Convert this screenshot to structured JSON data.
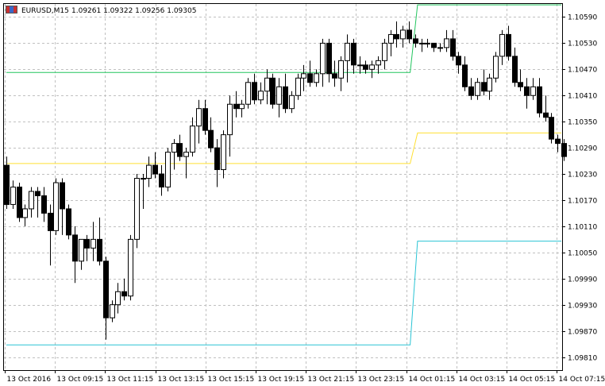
{
  "header": {
    "symbol_label": "EURUSD,M15",
    "ohlc_label": "1.09261 1.09322 1.09256 1.09305",
    "icon": "chart-window-icon"
  },
  "colors": {
    "background": "#ffffff",
    "grid": "#c0c0c0",
    "candle": "#000000",
    "line_upper": "#22c55e",
    "line_middle": "#ffe033",
    "line_lower": "#2ac4d4"
  },
  "chart_data": {
    "type": "candlestick",
    "symbol": "EURUSD",
    "timeframe": "M15",
    "grid": true,
    "ylim": [
      1.0978,
      1.1062
    ],
    "y_ticks": [
      "1.10590",
      "1.10530",
      "1.10470",
      "1.10410",
      "1.10350",
      "1.10290",
      "1.10230",
      "1.10170",
      "1.10110",
      "1.10050",
      "1.09990",
      "1.09930",
      "1.09870",
      "1.09810"
    ],
    "x_ticks": [
      "13 Oct 2016",
      "13 Oct 09:15",
      "13 Oct 11:15",
      "13 Oct 13:15",
      "13 Oct 15:15",
      "13 Oct 19:15",
      "13 Oct 21:15",
      "13 Oct 23:15",
      "14 Oct 01:15",
      "14 Oct 03:15",
      "14 Oct 05:15",
      "14 Oct 07:15"
    ],
    "candles": [
      [
        1.1025,
        1.1027,
        1.1015,
        1.1016
      ],
      [
        1.1016,
        1.10215,
        1.1015,
        1.102
      ],
      [
        1.102,
        1.1021,
        1.1012,
        1.1013
      ],
      [
        1.1013,
        1.1016,
        1.1011,
        1.1015
      ],
      [
        1.1015,
        1.102,
        1.1013,
        1.1019
      ],
      [
        1.1019,
        1.102,
        1.1013,
        1.1018
      ],
      [
        1.1018,
        1.102,
        1.1012,
        1.1014
      ],
      [
        1.1014,
        1.1016,
        1.1002,
        1.101
      ],
      [
        1.101,
        1.1022,
        1.1009,
        1.1021
      ],
      [
        1.1021,
        1.1022,
        1.1009,
        1.1015
      ],
      [
        1.1015,
        1.1016,
        1.1008,
        1.1009
      ],
      [
        1.1009,
        1.1011,
        1.0998,
        1.1003
      ],
      [
        1.1003,
        1.1008,
        1.1001,
        1.1008
      ],
      [
        1.1008,
        1.1009,
        1.1003,
        1.1006
      ],
      [
        1.1006,
        1.1012,
        1.1003,
        1.1008
      ],
      [
        1.1008,
        1.1013,
        1.1002,
        1.1003
      ],
      [
        1.1003,
        1.1004,
        1.0985,
        1.099
      ],
      [
        1.099,
        1.0994,
        1.0989,
        1.0993
      ],
      [
        1.0993,
        1.0998,
        1.0991,
        1.0996
      ],
      [
        1.0996,
        1.0999,
        1.0994,
        1.0995
      ],
      [
        1.0995,
        1.1009,
        1.0994,
        1.1008
      ],
      [
        1.1008,
        1.1023,
        1.1006,
        1.1022
      ],
      [
        1.1022,
        1.1023,
        1.1015,
        1.1022
      ],
      [
        1.1022,
        1.1027,
        1.102,
        1.1025
      ],
      [
        1.1025,
        1.1028,
        1.1022,
        1.1023
      ],
      [
        1.1023,
        1.1025,
        1.1018,
        1.102
      ],
      [
        1.102,
        1.1029,
        1.1019,
        1.1028
      ],
      [
        1.1028,
        1.1031,
        1.1024,
        1.103
      ],
      [
        1.103,
        1.1032,
        1.1026,
        1.1027
      ],
      [
        1.1027,
        1.1029,
        1.1022,
        1.1028
      ],
      [
        1.1028,
        1.1036,
        1.1027,
        1.1034
      ],
      [
        1.1034,
        1.104,
        1.103,
        1.1038
      ],
      [
        1.1038,
        1.104,
        1.1032,
        1.1033
      ],
      [
        1.1033,
        1.1036,
        1.1028,
        1.1029
      ],
      [
        1.1029,
        1.1031,
        1.102,
        1.1024
      ],
      [
        1.1024,
        1.1033,
        1.1022,
        1.1032
      ],
      [
        1.1032,
        1.1041,
        1.1027,
        1.1039
      ],
      [
        1.1039,
        1.1042,
        1.1036,
        1.1038
      ],
      [
        1.1038,
        1.104,
        1.1036,
        1.1039
      ],
      [
        1.1039,
        1.1045,
        1.1038,
        1.1044
      ],
      [
        1.1044,
        1.1046,
        1.1039,
        1.104
      ],
      [
        1.104,
        1.1044,
        1.1039,
        1.1042
      ],
      [
        1.1042,
        1.1047,
        1.1039,
        1.1045
      ],
      [
        1.1045,
        1.1046,
        1.1038,
        1.1039
      ],
      [
        1.1039,
        1.1045,
        1.1036,
        1.1043
      ],
      [
        1.1043,
        1.1046,
        1.1037,
        1.1038
      ],
      [
        1.1038,
        1.1042,
        1.1037,
        1.1041
      ],
      [
        1.1041,
        1.1046,
        1.104,
        1.1045
      ],
      [
        1.1045,
        1.1048,
        1.1042,
        1.1046
      ],
      [
        1.1046,
        1.1049,
        1.1043,
        1.1044
      ],
      [
        1.1044,
        1.1047,
        1.1043,
        1.1046
      ],
      [
        1.1046,
        1.1054,
        1.1043,
        1.1053
      ],
      [
        1.1053,
        1.1054,
        1.1044,
        1.1046
      ],
      [
        1.1046,
        1.1049,
        1.1043,
        1.1045
      ],
      [
        1.1045,
        1.105,
        1.1042,
        1.1049
      ],
      [
        1.1049,
        1.1055,
        1.1044,
        1.1053
      ],
      [
        1.1053,
        1.1054,
        1.1046,
        1.1048
      ],
      [
        1.1048,
        1.105,
        1.1046,
        1.1048
      ],
      [
        1.1048,
        1.1049,
        1.1046,
        1.1047
      ],
      [
        1.1047,
        1.1049,
        1.1045,
        1.1048
      ],
      [
        1.1048,
        1.105,
        1.1046,
        1.1049
      ],
      [
        1.1049,
        1.1054,
        1.1047,
        1.1053
      ],
      [
        1.1053,
        1.1056,
        1.105,
        1.1055
      ],
      [
        1.1055,
        1.1058,
        1.1052,
        1.1054
      ],
      [
        1.1054,
        1.1057,
        1.1052,
        1.1056
      ],
      [
        1.1056,
        1.1058,
        1.1053,
        1.1054
      ],
      [
        1.1054,
        1.1055,
        1.1052,
        1.1053
      ],
      [
        1.1053,
        1.1054,
        1.1051,
        1.1053
      ],
      [
        1.1053,
        1.1054,
        1.1052,
        1.1053
      ],
      [
        1.1053,
        1.1053,
        1.1051,
        1.1052
      ],
      [
        1.1052,
        1.1053,
        1.1051,
        1.1052
      ],
      [
        1.1052,
        1.1056,
        1.1051,
        1.1054
      ],
      [
        1.1054,
        1.1056,
        1.1049,
        1.105
      ],
      [
        1.105,
        1.1051,
        1.1046,
        1.1048
      ],
      [
        1.1048,
        1.105,
        1.1042,
        1.1043
      ],
      [
        1.1043,
        1.1045,
        1.104,
        1.1041
      ],
      [
        1.1041,
        1.1045,
        1.104,
        1.1044
      ],
      [
        1.1044,
        1.1047,
        1.1041,
        1.1042
      ],
      [
        1.1042,
        1.1046,
        1.104,
        1.1045
      ],
      [
        1.1045,
        1.1051,
        1.1044,
        1.105
      ],
      [
        1.105,
        1.1056,
        1.1048,
        1.1055
      ],
      [
        1.1055,
        1.1057,
        1.1049,
        1.105
      ],
      [
        1.105,
        1.1052,
        1.1043,
        1.1044
      ],
      [
        1.1044,
        1.1047,
        1.1042,
        1.1043
      ],
      [
        1.1043,
        1.1045,
        1.1038,
        1.1041
      ],
      [
        1.1041,
        1.1045,
        1.104,
        1.1043
      ],
      [
        1.1043,
        1.1045,
        1.1036,
        1.1037
      ],
      [
        1.1037,
        1.1041,
        1.1035,
        1.1036
      ],
      [
        1.1036,
        1.1037,
        1.103,
        1.1031
      ],
      [
        1.1031,
        1.1032,
        1.1028,
        1.103
      ],
      [
        1.103,
        1.1031,
        1.1026,
        1.1027
      ]
    ],
    "lines": [
      {
        "color": "#22c55e",
        "points": [
          [
            0,
            1.10463
          ],
          [
            65.2,
            1.10463
          ],
          [
            66.4,
            1.10618
          ],
          [
            90,
            1.10618
          ]
        ]
      },
      {
        "color": "#ffe033",
        "points": [
          [
            0,
            1.10254
          ],
          [
            65.2,
            1.10254
          ],
          [
            66.4,
            1.10324
          ],
          [
            90,
            1.10324
          ]
        ]
      },
      {
        "color": "#2ac4d4",
        "points": [
          [
            0,
            1.09838
          ],
          [
            65.2,
            1.09838
          ],
          [
            66.4,
            1.10076
          ],
          [
            90,
            1.10076
          ]
        ]
      }
    ]
  }
}
